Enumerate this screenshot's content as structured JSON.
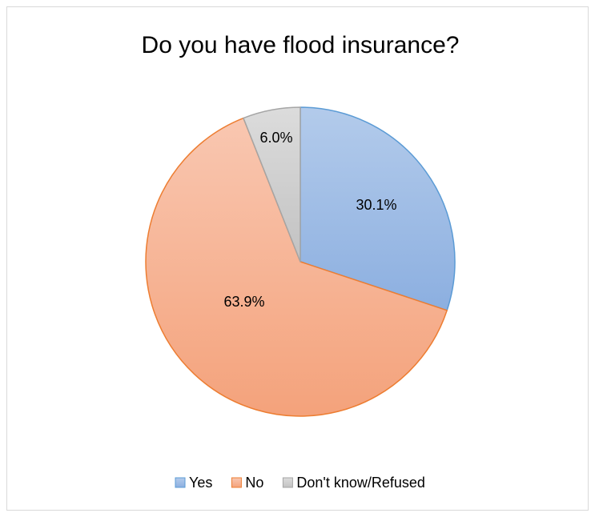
{
  "chart_data": {
    "type": "pie",
    "title": "Do you have flood insurance?",
    "categories": [
      "Yes",
      "No",
      "Don't know/Refused"
    ],
    "values": [
      30.1,
      63.9,
      6.0
    ],
    "data_labels": [
      "30.1%",
      "63.9%",
      "6.0%"
    ],
    "start": "top",
    "direction": "clockwise",
    "legend_position": "bottom",
    "colors": [
      {
        "fill_top": "#b3cbeb",
        "fill_bottom": "#8cafe0",
        "stroke": "#5b9bd5"
      },
      {
        "fill_top": "#f9c7b1",
        "fill_bottom": "#f4a27b",
        "stroke": "#ed7d31"
      },
      {
        "fill_top": "#dcdcdc",
        "fill_bottom": "#c2c2c2",
        "stroke": "#a5a5a5"
      }
    ],
    "chart_border_color": "#d9d9d9"
  }
}
